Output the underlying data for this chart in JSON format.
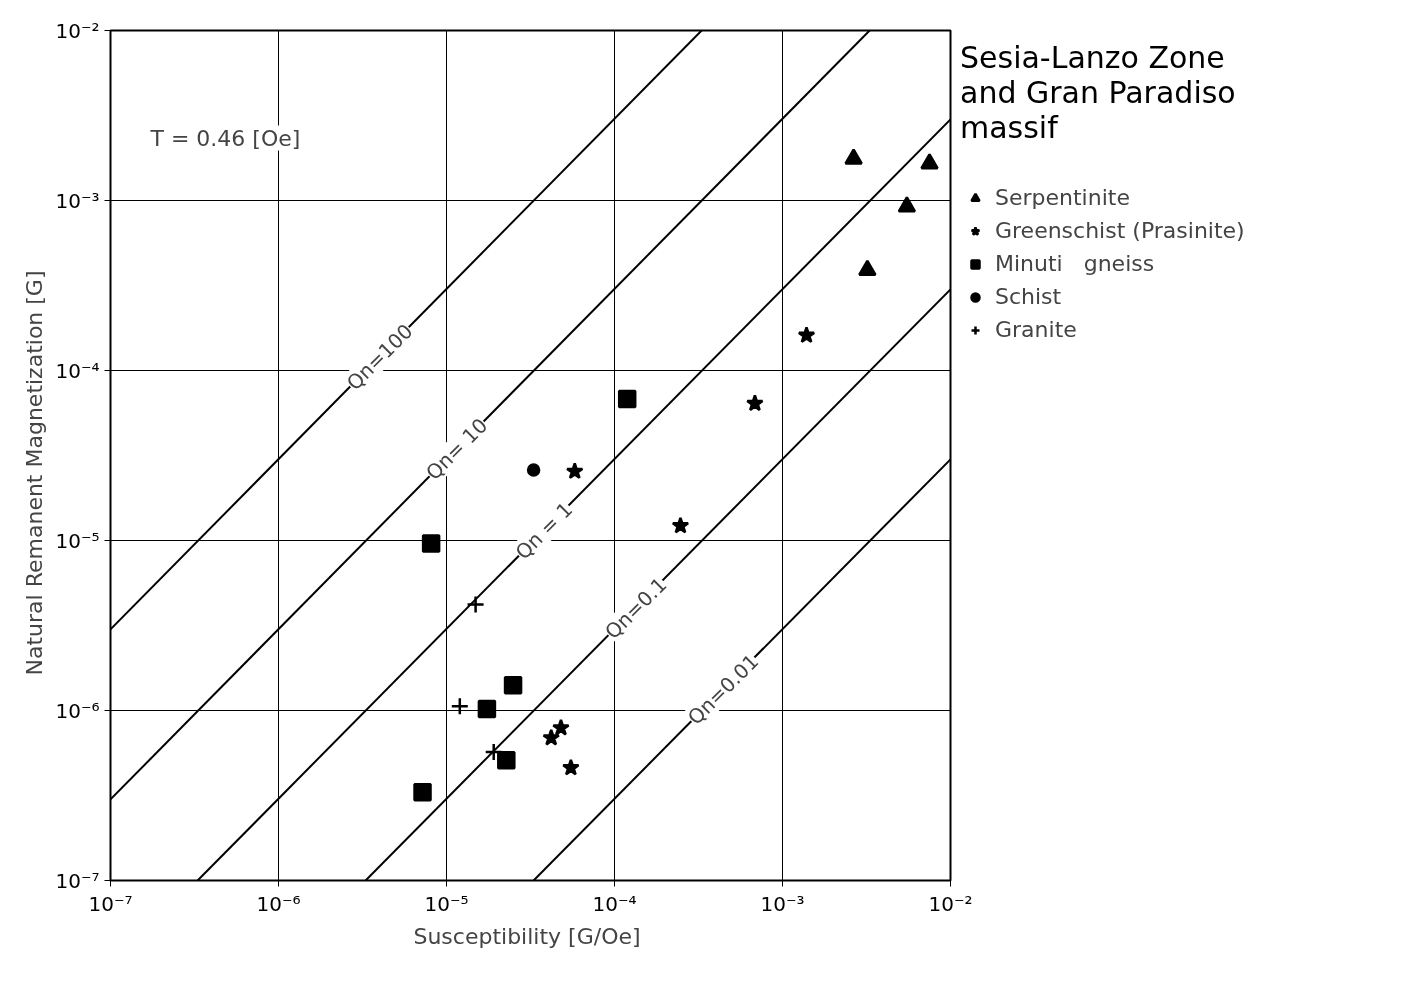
{
  "chart_data": {
    "type": "scatter",
    "title": "Sesia-Lanzo Zone and Gran Paradiso massif",
    "xlabel": "Susceptibility  [G/Oe]",
    "ylabel": "Natural   Remanent   Magnetization  [G]",
    "log": "xy",
    "grid": true,
    "legend": "right",
    "xlim": [
      1e-07,
      0.01
    ],
    "ylim": [
      1e-07,
      0.01
    ],
    "xticks": [
      {
        "value": 1e-07,
        "label": "10⁻⁷"
      },
      {
        "value": 1e-06,
        "label": "10⁻⁶"
      },
      {
        "value": 1e-05,
        "label": "10⁻⁵"
      },
      {
        "value": 0.0001,
        "label": "10⁻⁴"
      },
      {
        "value": 0.001,
        "label": "10⁻³"
      },
      {
        "value": 0.01,
        "label": "10⁻²"
      }
    ],
    "yticks": [
      {
        "value": 1e-07,
        "label": "10⁻⁷"
      },
      {
        "value": 1e-06,
        "label": "10⁻⁶"
      },
      {
        "value": 1e-05,
        "label": "10⁻⁵"
      },
      {
        "value": 0.0001,
        "label": "10⁻⁴"
      },
      {
        "value": 0.001,
        "label": "10⁻³"
      },
      {
        "value": 0.01,
        "label": "10⁻²"
      }
    ],
    "annotations": [
      "T = 0.46 [Oe]",
      {
        "text": "Qn=100",
        "x": 4e-06,
        "y": 0.00012
      },
      {
        "text": "Qn= 10",
        "x": 1.15e-05,
        "y": 3.45e-05
      },
      {
        "text": "Qn = 1",
        "x": 3.8e-05,
        "y": 1.14e-05
      },
      {
        "text": "Qn=0.1",
        "x": 0.000134,
        "y": 4e-06
      },
      {
        "text": "Qn=0.01",
        "x": 0.000443,
        "y": 1.33e-06
      }
    ],
    "series": [
      {
        "name": "Serpentinite",
        "color": "#000000",
        "marker": "triangle",
        "x": [
          0.00265,
          0.0075,
          0.0055,
          0.0032
        ],
        "values": [
          0.00176,
          0.00165,
          0.00092,
          0.00039
        ]
      },
      {
        "name": "Greenschist (Prasinite)",
        "color": "#000000",
        "marker": "star",
        "x": [
          0.00139,
          0.000685,
          0.000247,
          5.8e-05,
          4.2e-05,
          4.8e-05,
          5.5e-05
        ],
        "values": [
          0.000161,
          6.4e-05,
          1.22e-05,
          2.55e-05,
          6.9e-07,
          7.9e-07,
          4.6e-07
        ]
      },
      {
        "name": "Minuti   gneiss",
        "color": "#000000",
        "marker": "square",
        "x": [
          0.000119,
          8.1e-06,
          2.49e-05,
          1.74e-05,
          2.27e-05,
          7.2e-06
        ],
        "values": [
          6.8e-05,
          9.6e-06,
          1.41e-06,
          1.02e-06,
          5.1e-07,
          3.3e-07
        ]
      },
      {
        "name": "Schist",
        "color": "#000000",
        "marker": "circle",
        "x": [
          3.3e-05
        ],
        "values": [
          2.6e-05
        ]
      },
      {
        "name": "Granite",
        "color": "#000000",
        "marker": "cross",
        "x": [
          1.49e-05,
          1.2e-05,
          1.91e-05
        ],
        "values": [
          4.2e-06,
          1.06e-06,
          5.7e-07
        ]
      },
      {
        "type": "line",
        "color": "#000000",
        "line_style": "solid",
        "x": [
          1e-07,
          0.00033
        ],
        "values": [
          3e-06,
          0.01
        ]
      },
      {
        "type": "line",
        "color": "#000000",
        "line_style": "solid",
        "x": [
          1e-07,
          0.0033
        ],
        "values": [
          3e-07,
          0.01
        ]
      },
      {
        "type": "line",
        "color": "#000000",
        "line_style": "solid",
        "x": [
          3.3e-07,
          0.01
        ],
        "values": [
          1e-07,
          0.003
        ]
      },
      {
        "type": "line",
        "color": "#000000",
        "line_style": "solid",
        "x": [
          3.3e-06,
          0.01
        ],
        "values": [
          1e-07,
          0.0003
        ]
      },
      {
        "type": "line",
        "color": "#000000",
        "line_style": "solid",
        "x": [
          3.3e-05,
          0.01
        ],
        "values": [
          1e-07,
          3e-05
        ]
      }
    ]
  }
}
